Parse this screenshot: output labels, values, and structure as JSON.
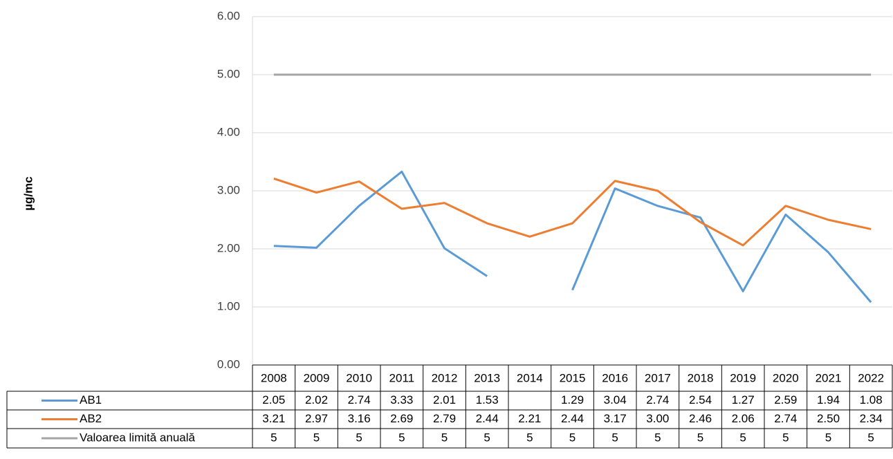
{
  "chart_data": {
    "type": "line",
    "y_label": "µg/mc",
    "categories": [
      "2008",
      "2009",
      "2010",
      "2011",
      "2012",
      "2013",
      "2014",
      "2015",
      "2016",
      "2017",
      "2018",
      "2019",
      "2020",
      "2021",
      "2022"
    ],
    "series": [
      {
        "name": "AB1",
        "color": "#5b9bd5",
        "values": [
          2.05,
          2.02,
          2.74,
          3.33,
          2.01,
          1.53,
          null,
          1.29,
          3.04,
          2.74,
          2.54,
          1.27,
          2.59,
          1.94,
          1.08
        ]
      },
      {
        "name": "AB2",
        "color": "#ed7d31",
        "values": [
          3.21,
          2.97,
          3.16,
          2.69,
          2.79,
          2.44,
          2.21,
          2.44,
          3.17,
          3.0,
          2.46,
          2.06,
          2.74,
          2.5,
          2.34
        ],
        "value_labels": [
          "3.21",
          "2.97",
          "3.16",
          "2.69",
          "2.79",
          "2.44",
          "2.21",
          "2.44",
          "3.17",
          "3.00",
          "2.46",
          "2.06",
          "2.74",
          "2.50",
          "2.34"
        ]
      },
      {
        "name": "Valoarea limită anuală",
        "color": "#a5a5a5",
        "values": [
          5,
          5,
          5,
          5,
          5,
          5,
          5,
          5,
          5,
          5,
          5,
          5,
          5,
          5,
          5
        ]
      }
    ],
    "ylim": [
      0,
      6
    ],
    "yticks": [
      {
        "value": 0,
        "label": "0.00"
      },
      {
        "value": 1,
        "label": "1.00"
      },
      {
        "value": 2,
        "label": "2.00"
      },
      {
        "value": 3,
        "label": "3.00"
      },
      {
        "value": 4,
        "label": "4.00"
      },
      {
        "value": 5,
        "label": "5.00"
      },
      {
        "value": 6,
        "label": "6.00"
      }
    ],
    "grid": true,
    "data_table": true
  }
}
